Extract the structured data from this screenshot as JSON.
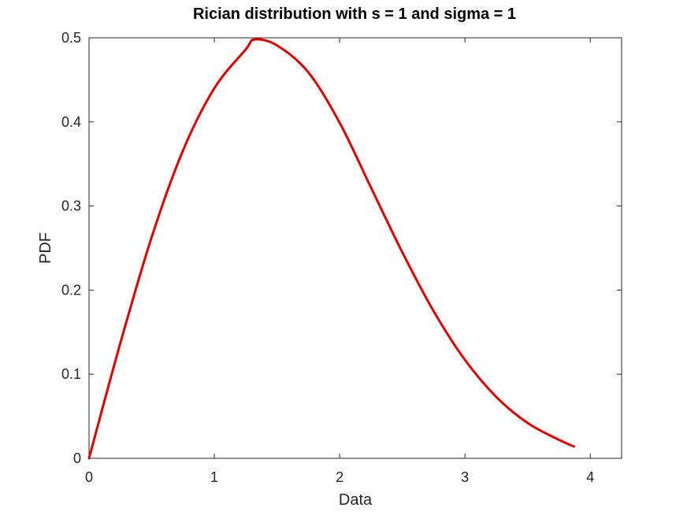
{
  "chart_data": {
    "type": "line",
    "title": "Rician distribution with s = 1 and sigma = 1",
    "xlabel": "Data",
    "ylabel": "PDF",
    "xlim": [
      0,
      4.25
    ],
    "ylim": [
      0,
      0.5
    ],
    "x_ticks": [
      "0",
      "1",
      "2",
      "3",
      "4"
    ],
    "y_ticks": [
      "0",
      "0.1",
      "0.2",
      "0.3",
      "0.4",
      "0.5"
    ],
    "grid": false,
    "legend": "none",
    "series": [
      {
        "color": "#e60000",
        "x": [
          0,
          0.25,
          0.5,
          0.75,
          1.0,
          1.25,
          1.32,
          1.5,
          1.75,
          2.0,
          2.25,
          2.5,
          2.75,
          3.0,
          3.25,
          3.5,
          3.75,
          3.87
        ],
        "y": [
          0,
          0.137,
          0.263,
          0.366,
          0.44,
          0.486,
          0.498,
          0.491,
          0.459,
          0.399,
          0.322,
          0.245,
          0.175,
          0.117,
          0.073,
          0.042,
          0.022,
          0.014
        ]
      }
    ]
  }
}
